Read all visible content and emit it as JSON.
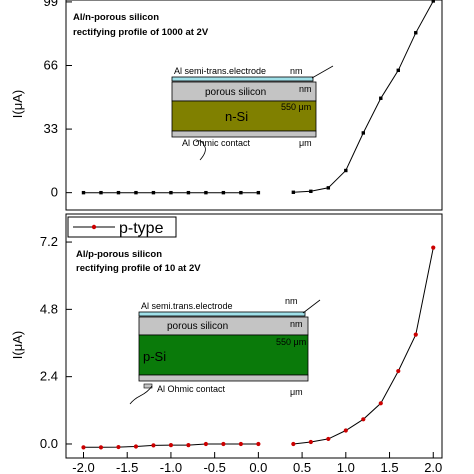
{
  "chart_data": [
    {
      "type": "line",
      "panel": "top",
      "title": "",
      "annotation": [
        "Al/n-porous silicon",
        "rectifying profile of 1000 at 2V"
      ],
      "xlabel": "",
      "ylabel": "I(μA)",
      "xlim": [
        -2.2,
        2.1
      ],
      "ylim": [
        -9,
        100
      ],
      "yticks": [
        "0",
        "33",
        "66",
        "99"
      ],
      "ytick_values": [
        0,
        33,
        66,
        99
      ],
      "grid": false,
      "series": [
        {
          "color": "#000000",
          "marker": "square",
          "segments": [
            {
              "x": [
                -2.0,
                -1.8,
                -1.6,
                -1.4,
                -1.2,
                -1.0,
                -0.8,
                -0.6,
                -0.4,
                -0.2,
                0.0
              ],
              "y": [
                0,
                0,
                0,
                0,
                0,
                0,
                0,
                0,
                0,
                0,
                0
              ]
            },
            {
              "x": [
                0.4,
                0.6,
                0.8,
                1.0,
                1.2,
                1.4,
                1.6,
                1.8,
                2.0
              ],
              "y": [
                0.2,
                0.7,
                2.5,
                11.5,
                31,
                49,
                63.5,
                83,
                99.5
              ]
            }
          ]
        }
      ],
      "inset": {
        "layers": [
          "Al semi-trans.electrode",
          "porous silicon",
          "n-Si",
          "Al Ohmic contact"
        ],
        "units": [
          "nm",
          "nm",
          "550 μm",
          "μm"
        ]
      }
    },
    {
      "type": "line",
      "panel": "bottom",
      "title": "",
      "annotation": [
        "Al/p-porous silicon",
        "rectifying profile of 10 at 2V"
      ],
      "xlabel": "",
      "ylabel": "I(μA)",
      "xlim": [
        -2.2,
        2.1
      ],
      "ylim": [
        -0.5,
        8.2
      ],
      "xticks": [
        "-2.0",
        "-1.5",
        "-1.0",
        "-0.5",
        "0.0",
        "0.5",
        "1.0",
        "1.5",
        "2.0"
      ],
      "xtick_values": [
        -2.0,
        -1.5,
        -1.0,
        -0.5,
        0.0,
        0.5,
        1.0,
        1.5,
        2.0
      ],
      "yticks": [
        "0.0",
        "2.4",
        "4.8",
        "7.2"
      ],
      "ytick_values": [
        0.0,
        2.4,
        4.8,
        7.2
      ],
      "grid": false,
      "legend": {
        "position": "top-left",
        "entries": [
          "p-type"
        ]
      },
      "series": [
        {
          "name": "p-type",
          "color": "#cc0000",
          "marker": "circle",
          "segments": [
            {
              "x": [
                -2.0,
                -1.8,
                -1.6,
                -1.4,
                -1.2,
                -1.0,
                -0.8,
                -0.6,
                -0.4,
                -0.2,
                0.0
              ],
              "y": [
                -0.12,
                -0.12,
                -0.11,
                -0.09,
                -0.05,
                -0.04,
                -0.04,
                0.0,
                0.0,
                0.0,
                0.0
              ]
            },
            {
              "x": [
                0.4,
                0.6,
                0.8,
                1.0,
                1.2,
                1.4,
                1.6,
                1.8,
                2.0
              ],
              "y": [
                0.0,
                0.07,
                0.18,
                0.48,
                0.88,
                1.45,
                2.6,
                3.9,
                7.0
              ]
            }
          ]
        }
      ],
      "inset": {
        "layers": [
          "Al semi.trans.electrode",
          "porous silicon",
          "p-Si",
          "Al Ohmic contact"
        ],
        "units": [
          "nm",
          "nm",
          "550 μm",
          "μm"
        ]
      }
    }
  ]
}
